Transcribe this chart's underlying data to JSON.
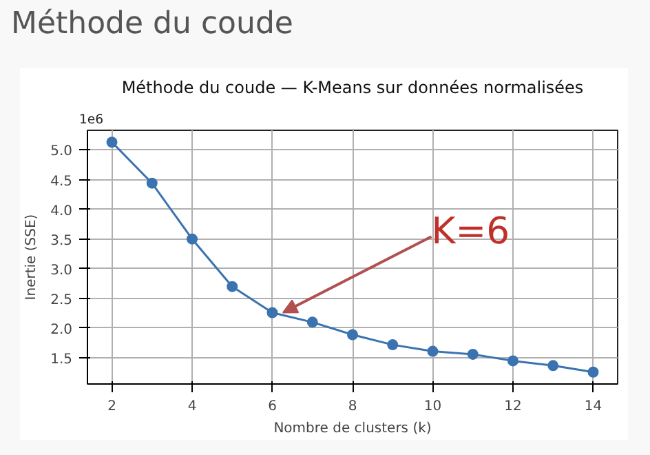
{
  "chart_data": {
    "type": "line",
    "title": "Méthode du coude",
    "subtitle": "Méthode du coude — K-Means sur données normalisées",
    "xlabel": "Nombre de clusters (k)",
    "ylabel": "Inertie (SSE)",
    "x": [
      2,
      3,
      4,
      5,
      6,
      7,
      8,
      9,
      10,
      11,
      12,
      13,
      14
    ],
    "series": [
      {
        "color": "#3a73b0",
        "values": [
          5.13,
          4.44,
          3.5,
          2.7,
          2.26,
          2.1,
          1.89,
          1.72,
          1.61,
          1.56,
          1.45,
          1.37,
          1.26
        ]
      }
    ],
    "xlim": [
      1.39,
      14.61
    ],
    "ylim": [
      1.06,
      5.33
    ],
    "xticks": [
      2,
      4,
      6,
      8,
      10,
      12,
      14
    ],
    "yticks": [
      1.5,
      {
        "value": 2,
        "label": "2.0"
      },
      2.5,
      {
        "value": 3,
        "label": "3.0"
      },
      3.5,
      {
        "value": 4,
        "label": "4.0"
      },
      4.5,
      {
        "value": 5,
        "label": "5.0"
      }
    ],
    "annotations": [
      "1e6",
      {
        "text": "K=6",
        "x": 6,
        "y": 2.26
      }
    ],
    "grid": true,
    "marker": "circle",
    "line_style": "solid"
  }
}
